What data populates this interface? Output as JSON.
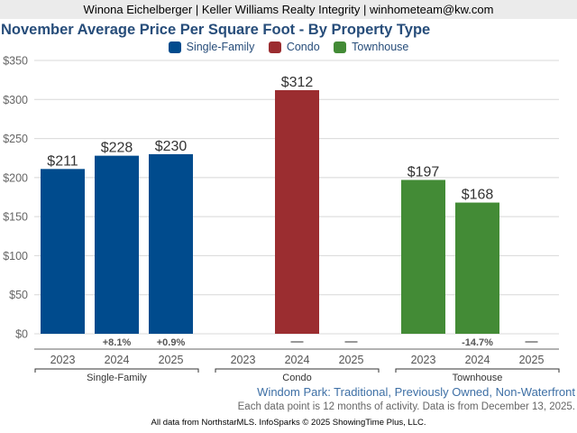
{
  "header": {
    "agent_line": "Winona Eichelberger | Keller Williams Realty Integrity | winhometeam@kw.com"
  },
  "chart_data": {
    "type": "bar",
    "title": "November Average Price Per Square Foot - By Property Type",
    "xlabel": "",
    "ylabel": "",
    "ylim": [
      0,
      350
    ],
    "yticks": [
      0,
      50,
      100,
      150,
      200,
      250,
      300,
      350
    ],
    "ytick_labels": [
      "$0",
      "$50",
      "$100",
      "$150",
      "$200",
      "$250",
      "$300",
      "$350"
    ],
    "grid": true,
    "legend_position": "top-center",
    "legend": [
      {
        "name": "Single-Family",
        "color": "#004b8d"
      },
      {
        "name": "Condo",
        "color": "#9b2d30"
      },
      {
        "name": "Townhouse",
        "color": "#438b36"
      }
    ],
    "categories": [
      "2023",
      "2024",
      "2025"
    ],
    "groups": [
      {
        "name": "Single-Family",
        "color": "#004b8d",
        "values": [
          211,
          228,
          230
        ],
        "value_labels": [
          "$211",
          "$228",
          "$230"
        ],
        "changes": [
          "",
          "+8.1%",
          "+0.9%"
        ]
      },
      {
        "name": "Condo",
        "color": "#9b2d30",
        "values": [
          null,
          312,
          null
        ],
        "value_labels": [
          "",
          "$312",
          ""
        ],
        "changes": [
          "",
          "--",
          "--"
        ]
      },
      {
        "name": "Townhouse",
        "color": "#438b36",
        "values": [
          197,
          168,
          null
        ],
        "value_labels": [
          "$197",
          "$168",
          ""
        ],
        "changes": [
          "",
          "-14.7%",
          "--"
        ]
      }
    ]
  },
  "subtitle": "Windom Park: Traditional, Previously Owned, Non-Waterfront",
  "note": "Each data point is 12 months of activity. Data is from December 13, 2025.",
  "footer": "All data from NorthstarMLS. InfoSparks © 2025 ShowingTime Plus, LLC."
}
